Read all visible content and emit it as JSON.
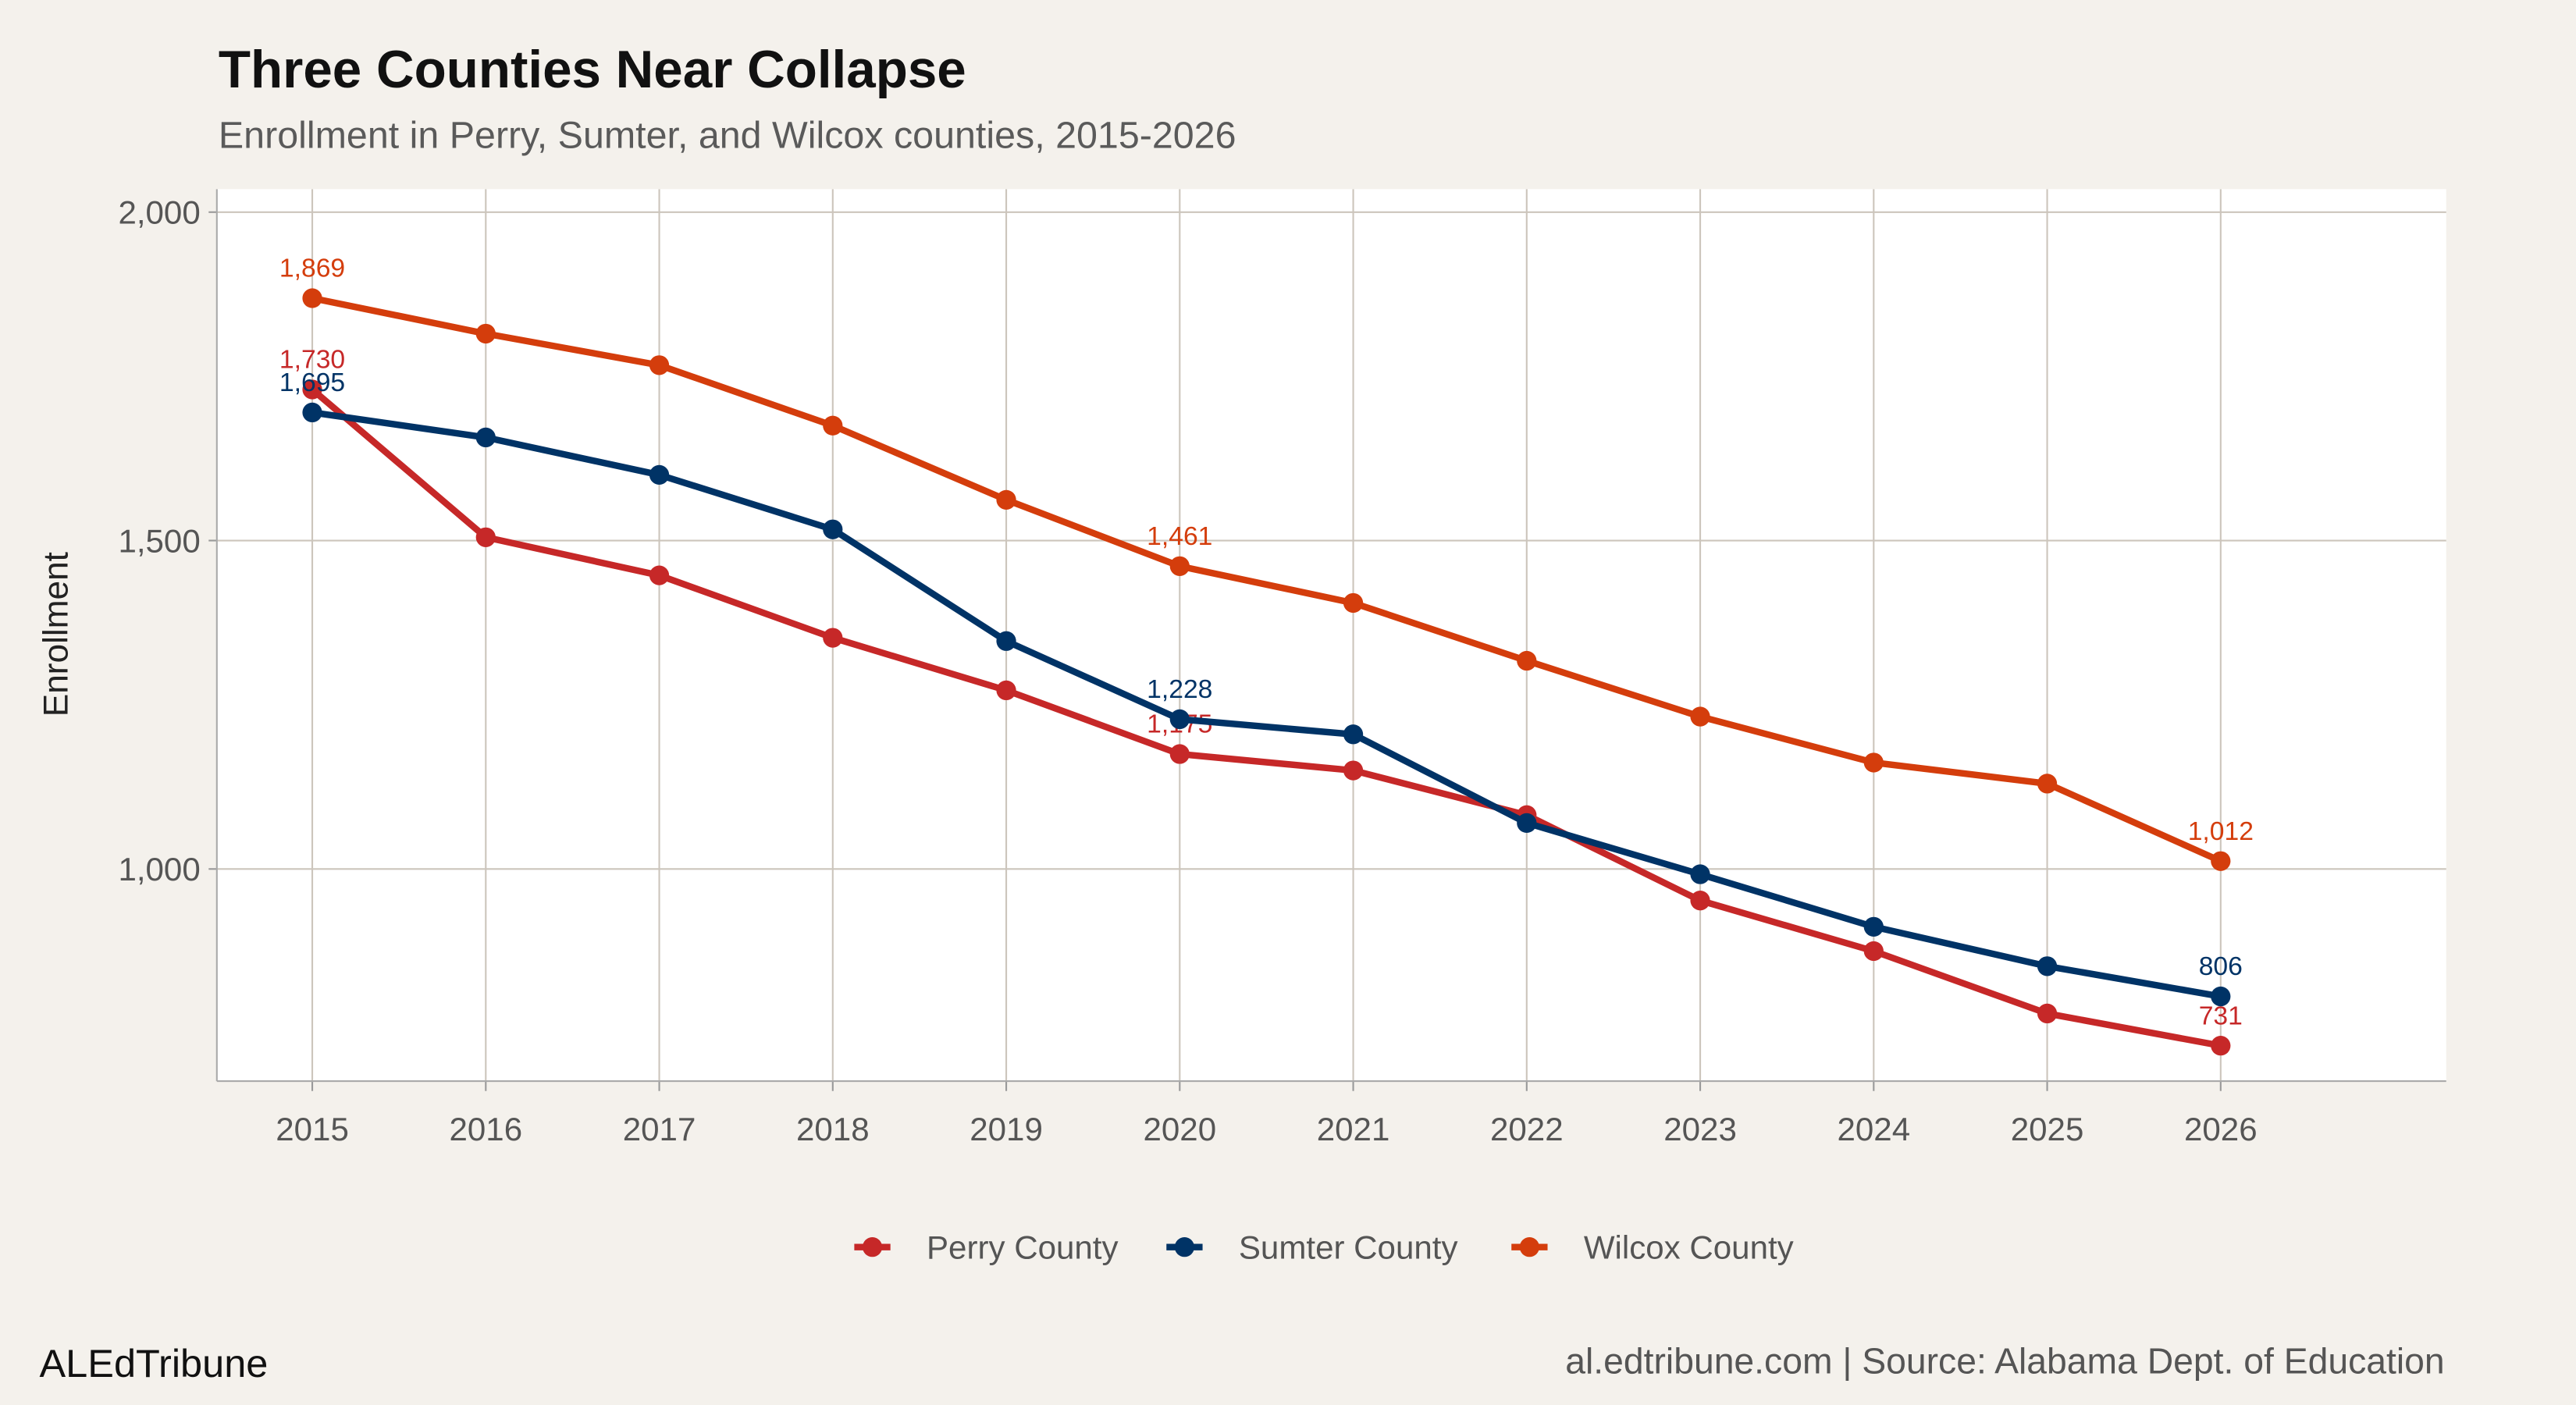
{
  "chart_data": {
    "type": "line",
    "title": "Three Counties Near Collapse",
    "subtitle": "Enrollment in Perry, Sumter, and Wilcox counties, 2015-2026",
    "xlabel": "",
    "ylabel": "Enrollment",
    "x": [
      2015,
      2016,
      2017,
      2018,
      2019,
      2020,
      2021,
      2022,
      2023,
      2024,
      2025,
      2026
    ],
    "xlim": [
      2014.45,
      2027.3
    ],
    "ylim": [
      677,
      2035
    ],
    "yticks": [
      1000,
      1500,
      2000
    ],
    "ytick_labels": [
      "1,000",
      "1,500",
      "2,000"
    ],
    "xtick_labels": [
      "2015",
      "2016",
      "2017",
      "2018",
      "2019",
      "2020",
      "2021",
      "2022",
      "2023",
      "2024",
      "2025",
      "2026"
    ],
    "grid": true,
    "legend_position": "bottom",
    "labeled_years": [
      2015,
      2020,
      2026
    ],
    "series": [
      {
        "name": "Perry County",
        "color": "#C62828",
        "values": [
          1730,
          1505,
          1447,
          1352,
          1272,
          1175,
          1150,
          1082,
          952,
          875,
          780,
          731
        ]
      },
      {
        "name": "Sumter County",
        "color": "#003366",
        "values": [
          1695,
          1657,
          1600,
          1517,
          1347,
          1228,
          1205,
          1070,
          992,
          912,
          852,
          806
        ]
      },
      {
        "name": "Wilcox County",
        "color": "#D43D0C",
        "values": [
          1869,
          1815,
          1767,
          1675,
          1562,
          1461,
          1405,
          1317,
          1232,
          1162,
          1130,
          1012
        ]
      }
    ]
  },
  "footer": {
    "brand": "ALEdTribune",
    "source": "al.edtribune.com | Source: Alabama Dept. of Education"
  },
  "colors": {
    "background": "#F4F1EC",
    "panel": "#FFFFFF",
    "grid": "#CCC5BC"
  }
}
